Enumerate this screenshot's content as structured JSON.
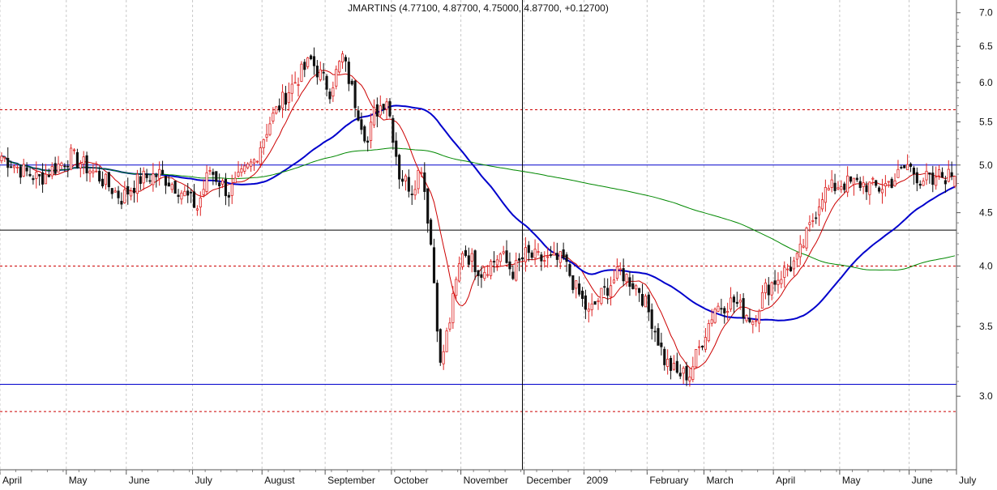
{
  "chart_data": {
    "type": "candlestick",
    "title": "JMARTINS (4.77100, 4.87700, 4.75000, 4.87700, +0.12700)",
    "y_axis": {
      "side": "right",
      "scale": "log",
      "ylim": [
        2.55,
        7.2
      ],
      "ticks": [
        3.0,
        3.5,
        4.0,
        4.5,
        5.0,
        5.5,
        6.0,
        6.5,
        7.0
      ],
      "tick_labels": [
        "3.0",
        "3.5",
        "4.0",
        "4.5",
        "5.0",
        "5.5",
        "6.0",
        "6.5",
        "7.0"
      ]
    },
    "x_axis": {
      "months": [
        "April",
        "May",
        "June",
        "July",
        "August",
        "September",
        "October",
        "November",
        "December",
        "2009",
        "February",
        "March",
        "April",
        "May",
        "June",
        "July"
      ],
      "n_bars": 303,
      "month_start_bar": [
        0,
        21,
        40,
        61,
        83,
        103,
        124,
        146,
        166,
        185,
        205,
        223,
        245,
        266,
        288,
        303
      ]
    },
    "grid": true,
    "crosshair_vertical_bar": 165,
    "horizontal_lines": [
      {
        "value": 5.65,
        "color": "#cc0000",
        "style": "dashed"
      },
      {
        "value": 5.0,
        "color": "#0000cc",
        "style": "solid"
      },
      {
        "value": 4.33,
        "color": "#000000",
        "style": "solid"
      },
      {
        "value": 4.0,
        "color": "#cc0000",
        "style": "dashed"
      },
      {
        "value": 3.08,
        "color": "#0000cc",
        "style": "solid"
      },
      {
        "value": 2.9,
        "color": "#cc0000",
        "style": "dashed"
      }
    ],
    "price_anchors": [
      [
        0,
        5.1
      ],
      [
        6,
        4.95
      ],
      [
        12,
        4.85
      ],
      [
        18,
        5.0
      ],
      [
        22,
        5.1
      ],
      [
        30,
        4.9
      ],
      [
        38,
        4.65
      ],
      [
        44,
        4.85
      ],
      [
        50,
        4.9
      ],
      [
        56,
        4.75
      ],
      [
        62,
        4.55
      ],
      [
        66,
        4.95
      ],
      [
        72,
        4.7
      ],
      [
        80,
        5.05
      ],
      [
        85,
        5.5
      ],
      [
        91,
        5.9
      ],
      [
        98,
        6.3
      ],
      [
        104,
        5.9
      ],
      [
        108,
        6.35
      ],
      [
        112,
        5.75
      ],
      [
        116,
        5.25
      ],
      [
        118,
        5.6
      ],
      [
        122,
        5.8
      ],
      [
        126,
        4.9
      ],
      [
        130,
        4.75
      ],
      [
        133,
        5.0
      ],
      [
        136,
        4.2
      ],
      [
        139,
        3.2
      ],
      [
        142,
        3.55
      ],
      [
        146,
        4.15
      ],
      [
        152,
        3.95
      ],
      [
        158,
        4.1
      ],
      [
        162,
        3.95
      ],
      [
        166,
        4.1
      ],
      [
        172,
        4.05
      ],
      [
        178,
        4.05
      ],
      [
        182,
        3.8
      ],
      [
        186,
        3.6
      ],
      [
        190,
        3.75
      ],
      [
        196,
        3.95
      ],
      [
        202,
        3.8
      ],
      [
        206,
        3.55
      ],
      [
        210,
        3.25
      ],
      [
        214,
        3.15
      ],
      [
        218,
        3.15
      ],
      [
        222,
        3.4
      ],
      [
        226,
        3.65
      ],
      [
        232,
        3.7
      ],
      [
        238,
        3.55
      ],
      [
        242,
        3.8
      ],
      [
        248,
        3.95
      ],
      [
        252,
        4.05
      ],
      [
        256,
        4.35
      ],
      [
        260,
        4.7
      ],
      [
        266,
        4.8
      ],
      [
        272,
        4.8
      ],
      [
        278,
        4.75
      ],
      [
        283,
        4.85
      ],
      [
        287,
        5.0
      ],
      [
        291,
        4.85
      ],
      [
        294,
        4.85
      ],
      [
        295,
        4.71
      ],
      [
        296,
        4.877
      ]
    ],
    "series": [
      {
        "name": "",
        "type": "sma",
        "period": 10,
        "color": "#cc0000",
        "width": 1
      },
      {
        "name": "",
        "type": "sma",
        "period": 50,
        "color": "#0000cc",
        "width": 2
      },
      {
        "name": "",
        "type": "sma",
        "period": 150,
        "color": "#008800",
        "width": 1
      }
    ],
    "candle_colors": {
      "up": "#dd2222",
      "down": "#111111"
    },
    "last_close": 4.877,
    "change": 0.127
  }
}
